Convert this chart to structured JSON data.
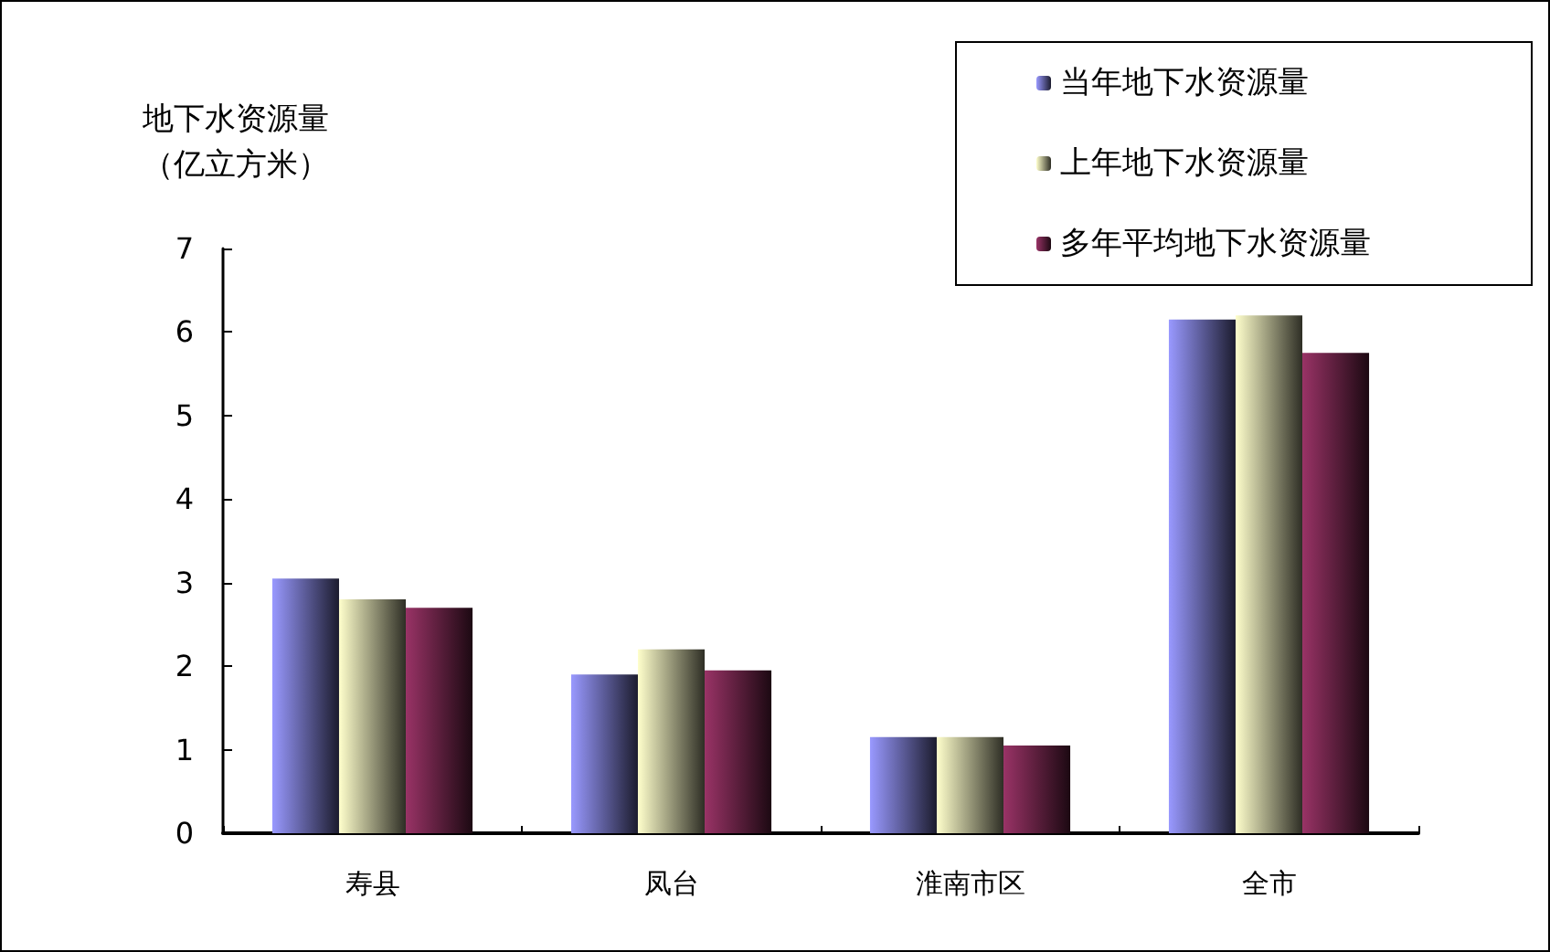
{
  "chart_data": {
    "type": "bar",
    "ylabel": "地下水资源量（亿立方米）",
    "categories": [
      "寿县",
      "凤台",
      "淮南市区",
      "全市"
    ],
    "series": [
      {
        "name": "当年地下水资源量",
        "color": "#9999ff",
        "values": [
          3.05,
          1.9,
          1.15,
          6.15
        ]
      },
      {
        "name": "上年地下水资源量",
        "color": "#ffffcc",
        "values": [
          2.8,
          2.2,
          1.15,
          6.2
        ]
      },
      {
        "name": "多年平均地下水资源量",
        "color": "#993366",
        "values": [
          2.7,
          1.95,
          1.05,
          5.75
        ]
      }
    ],
    "ylim": [
      0,
      7
    ],
    "yticks": [
      0,
      1,
      2,
      3,
      4,
      5,
      6,
      7
    ],
    "legend": "top right"
  }
}
